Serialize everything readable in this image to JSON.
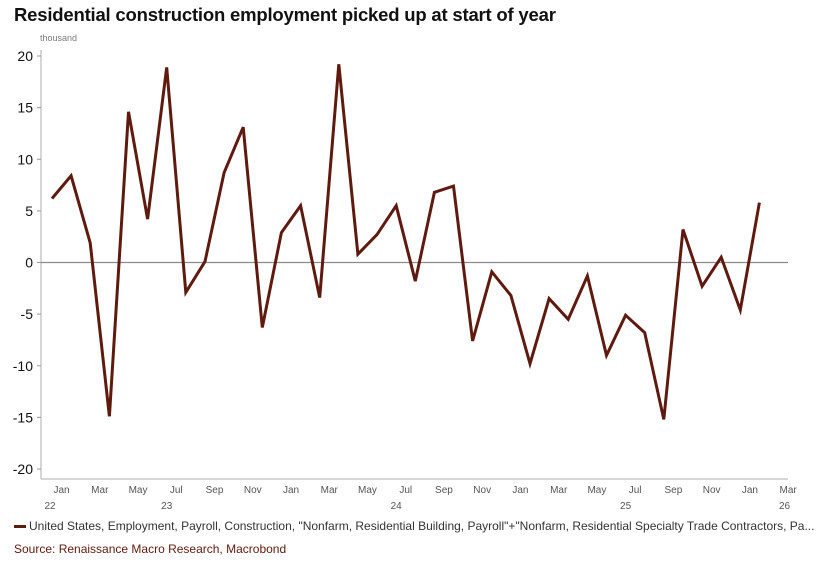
{
  "header": {
    "title": "Residential construction employment picked up at start of year"
  },
  "footer": {
    "legend_label": "United States, Employment, Payroll, Construction, \"Nonfarm, Residential Building, Payroll\"+\"Nonfarm, Residential Specialty Trade Contractors, Pa...",
    "source": "Source: Renaissance Macro Research, Macrobond"
  },
  "colors": {
    "series": "#5e1a0e",
    "zero_line": "#8c8c8c",
    "axis": "#c8c8c8",
    "source_text": "#5e1a0e"
  },
  "chart_data": {
    "type": "line",
    "title": "Residential construction employment picked up at start of year",
    "unit_label": "thousand",
    "xlabel": "",
    "ylabel": "thousand",
    "ylim": [
      -20,
      20
    ],
    "yticks": [
      20,
      15,
      10,
      5,
      0,
      -5,
      -10,
      -15,
      -20
    ],
    "grid": false,
    "zero_line": true,
    "legend_position": "bottom-left",
    "x_range": [
      "Dec 2022",
      "Mar 2026"
    ],
    "x_tick_labels": [
      {
        "month": "Jan",
        "year": "23"
      },
      {
        "month": "Mar",
        "year": ""
      },
      {
        "month": "May",
        "year": ""
      },
      {
        "month": "Jul",
        "year": ""
      },
      {
        "month": "Sep",
        "year": ""
      },
      {
        "month": "Nov",
        "year": ""
      },
      {
        "month": "Jan",
        "year": ""
      },
      {
        "month": "Mar",
        "year": ""
      },
      {
        "month": "May",
        "year": ""
      },
      {
        "month": "Jul",
        "year": ""
      },
      {
        "month": "Sep",
        "year": ""
      },
      {
        "month": "Nov",
        "year": ""
      },
      {
        "month": "Jan",
        "year": ""
      },
      {
        "month": "Mar",
        "year": ""
      },
      {
        "month": "May",
        "year": ""
      },
      {
        "month": "Jul",
        "year": ""
      },
      {
        "month": "Sep",
        "year": ""
      },
      {
        "month": "Nov",
        "year": ""
      },
      {
        "month": "Jan",
        "year": ""
      },
      {
        "month": "Mar",
        "year": ""
      }
    ],
    "year_labels": [
      "22",
      "23",
      "24",
      "25",
      "26"
    ],
    "series": [
      {
        "name": "United States, Employment, Payroll, Construction, \"Nonfarm, Residential Building, Payroll\"+\"Nonfarm, Residential Specialty Trade Contractors, Pa...",
        "x": [
          "2022-12",
          "2023-01",
          "2023-02",
          "2023-03",
          "2023-04",
          "2023-05",
          "2023-06",
          "2023-07",
          "2023-08",
          "2023-09",
          "2023-10",
          "2023-11",
          "2023-12",
          "2024-01",
          "2024-02",
          "2024-03",
          "2024-04",
          "2024-05",
          "2024-06",
          "2024-07",
          "2024-08",
          "2024-09",
          "2024-10",
          "2024-11",
          "2024-12",
          "2025-01",
          "2025-02",
          "2025-03",
          "2025-04",
          "2025-05",
          "2025-06",
          "2025-07",
          "2025-08",
          "2025-09",
          "2025-10",
          "2025-11",
          "2025-12",
          "2026-01"
        ],
        "values": [
          6.2,
          8.4,
          1.9,
          -14.9,
          14.6,
          4.2,
          18.9,
          -2.9,
          0.1,
          8.7,
          13.1,
          -6.3,
          2.9,
          5.5,
          -3.4,
          19.2,
          0.8,
          2.7,
          5.5,
          -1.8,
          6.8,
          7.4,
          -7.6,
          -0.9,
          -3.2,
          -9.8,
          -3.5,
          -5.5,
          -1.3,
          -9.0,
          -5.1,
          -6.8,
          -15.2,
          3.2,
          -2.3,
          0.5,
          -4.6,
          5.8
        ]
      }
    ]
  }
}
